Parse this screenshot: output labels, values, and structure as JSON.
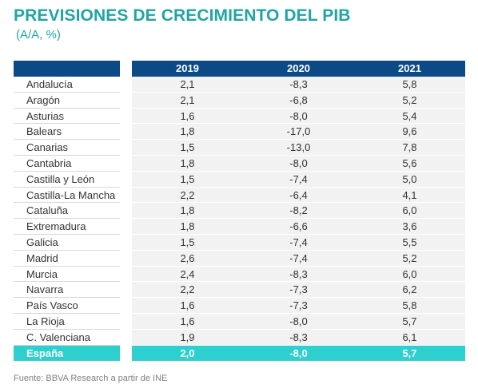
{
  "title": "PREVISIONES DE CRECIMIENTO DEL PIB",
  "subtitle": "(A/A, %)",
  "table": {
    "columns": [
      "2019",
      "2020",
      "2021"
    ],
    "rows": [
      {
        "name": "Andalucía",
        "values": [
          "2,1",
          "-8,3",
          "5,8"
        ]
      },
      {
        "name": "Aragón",
        "values": [
          "2,1",
          "-6,8",
          "5,2"
        ]
      },
      {
        "name": "Asturias",
        "values": [
          "1,6",
          "-8,0",
          "5,4"
        ]
      },
      {
        "name": "Balears",
        "values": [
          "1,8",
          "-17,0",
          "9,6"
        ]
      },
      {
        "name": "Canarias",
        "values": [
          "1,5",
          "-13,0",
          "7,8"
        ]
      },
      {
        "name": "Cantabria",
        "values": [
          "1,8",
          "-8,0",
          "5,6"
        ]
      },
      {
        "name": "Castilla y León",
        "values": [
          "1,5",
          "-7,4",
          "5,0"
        ]
      },
      {
        "name": "Castilla-La Mancha",
        "values": [
          "2,2",
          "-6,4",
          "4,1"
        ]
      },
      {
        "name": "Cataluña",
        "values": [
          "1,8",
          "-8,2",
          "6,0"
        ]
      },
      {
        "name": "Extremadura",
        "values": [
          "1,8",
          "-6,6",
          "3,6"
        ]
      },
      {
        "name": "Galicia",
        "values": [
          "1,5",
          "-7,4",
          "5,5"
        ]
      },
      {
        "name": "Madrid",
        "values": [
          "2,6",
          "-7,4",
          "5,2"
        ]
      },
      {
        "name": "Murcia",
        "values": [
          "2,4",
          "-8,3",
          "6,0"
        ]
      },
      {
        "name": "Navarra",
        "values": [
          "2,2",
          "-7,3",
          "6,2"
        ]
      },
      {
        "name": "País Vasco",
        "values": [
          "1,6",
          "-7,3",
          "5,8"
        ]
      },
      {
        "name": "La Rioja",
        "values": [
          "1,6",
          "-8,0",
          "5,7"
        ]
      },
      {
        "name": "C. Valenciana",
        "values": [
          "1,9",
          "-8,3",
          "6,1"
        ]
      }
    ],
    "total": {
      "name": "España",
      "values": [
        "2,0",
        "-8,0",
        "5,7"
      ]
    }
  },
  "footer": "Fuente: BBVA Research a partir de INE",
  "colors": {
    "title": "#1ea6a6",
    "header_bg": "#0b4a86",
    "total_bg": "#2ecfcf",
    "cell_bg": "#f2f2f2"
  }
}
